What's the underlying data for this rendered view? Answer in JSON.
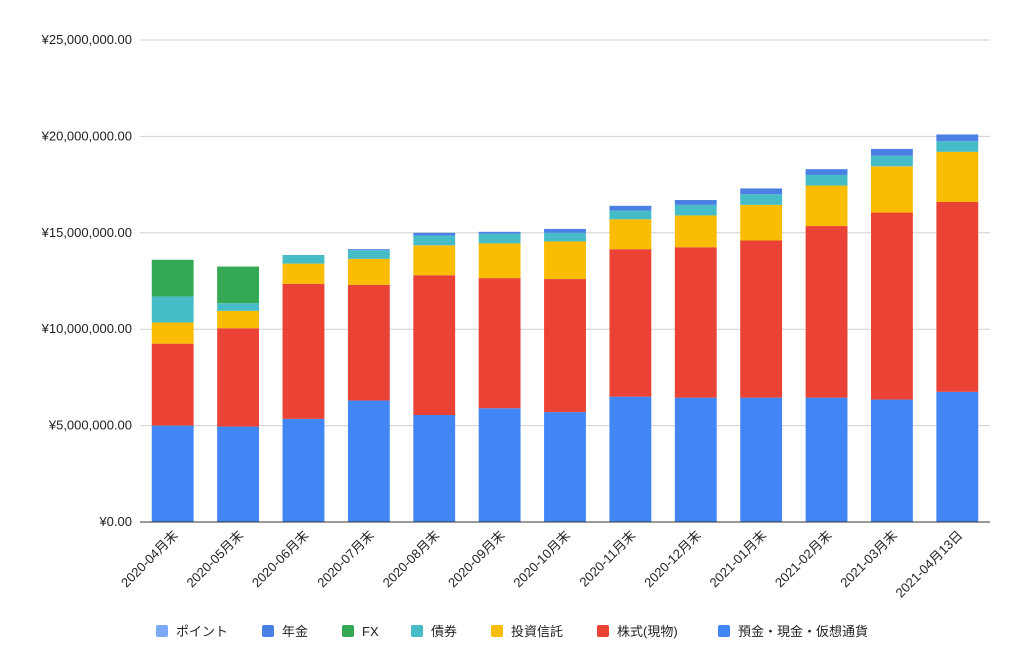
{
  "chart_data": {
    "type": "bar",
    "stacked": true,
    "title": "",
    "xlabel": "",
    "ylabel": "",
    "ylim": [
      0,
      25000000
    ],
    "yticks": [
      0,
      5000000,
      10000000,
      15000000,
      20000000,
      25000000
    ],
    "ytick_labels": [
      "¥0.00",
      "¥5,000,000.00",
      "¥10,000,000.00",
      "¥15,000,000.00",
      "¥20,000,000.00",
      "¥25,000,000.00"
    ],
    "grid": true,
    "legend_position": "bottom",
    "categories": [
      "2020-04月末",
      "2020-05月末",
      "2020-06月末",
      "2020-07月末",
      "2020-08月末",
      "2020-09月末",
      "2020-10月末",
      "2020-11月末",
      "2020-12月末",
      "2021-01月末",
      "2021-02月末",
      "2021-03月末",
      "2021-04月13日"
    ],
    "series": [
      {
        "name": "預金・現金・仮想通貨",
        "color": "#4285f4",
        "values": [
          5000000,
          4950000,
          5350000,
          6300000,
          5550000,
          5900000,
          5700000,
          6500000,
          6450000,
          6450000,
          6450000,
          6350000,
          6750000
        ]
      },
      {
        "name": "株式(現物)",
        "color": "#ea4335",
        "values": [
          4250000,
          5100000,
          7000000,
          6000000,
          7250000,
          6750000,
          6900000,
          7650000,
          7800000,
          8150000,
          8900000,
          9700000,
          9850000
        ]
      },
      {
        "name": "投資信託",
        "color": "#fbbc04",
        "values": [
          1100000,
          900000,
          1050000,
          1350000,
          1550000,
          1800000,
          1950000,
          1550000,
          1650000,
          1850000,
          2100000,
          2400000,
          2600000
        ]
      },
      {
        "name": "債券",
        "color": "#46bdc6",
        "values": [
          1350000,
          400000,
          450000,
          450000,
          500000,
          500000,
          450000,
          450000,
          550000,
          550000,
          550000,
          550000,
          550000
        ]
      },
      {
        "name": "FX",
        "color": "#34a853",
        "values": [
          1900000,
          1900000,
          0,
          0,
          0,
          0,
          0,
          0,
          0,
          0,
          0,
          0,
          0
        ]
      },
      {
        "name": "年金",
        "color": "#4a7fe4",
        "values": [
          0,
          0,
          0,
          50000,
          150000,
          100000,
          200000,
          250000,
          250000,
          300000,
          300000,
          350000,
          350000
        ]
      },
      {
        "name": "ポイント",
        "color": "#7baaf7",
        "values": [
          0,
          0,
          0,
          0,
          0,
          0,
          0,
          0,
          0,
          0,
          0,
          0,
          0
        ]
      }
    ],
    "legend_order": [
      "ポイント",
      "年金",
      "FX",
      "債券",
      "投資信託",
      "株式(現物)",
      "預金・現金・仮想通貨"
    ]
  }
}
